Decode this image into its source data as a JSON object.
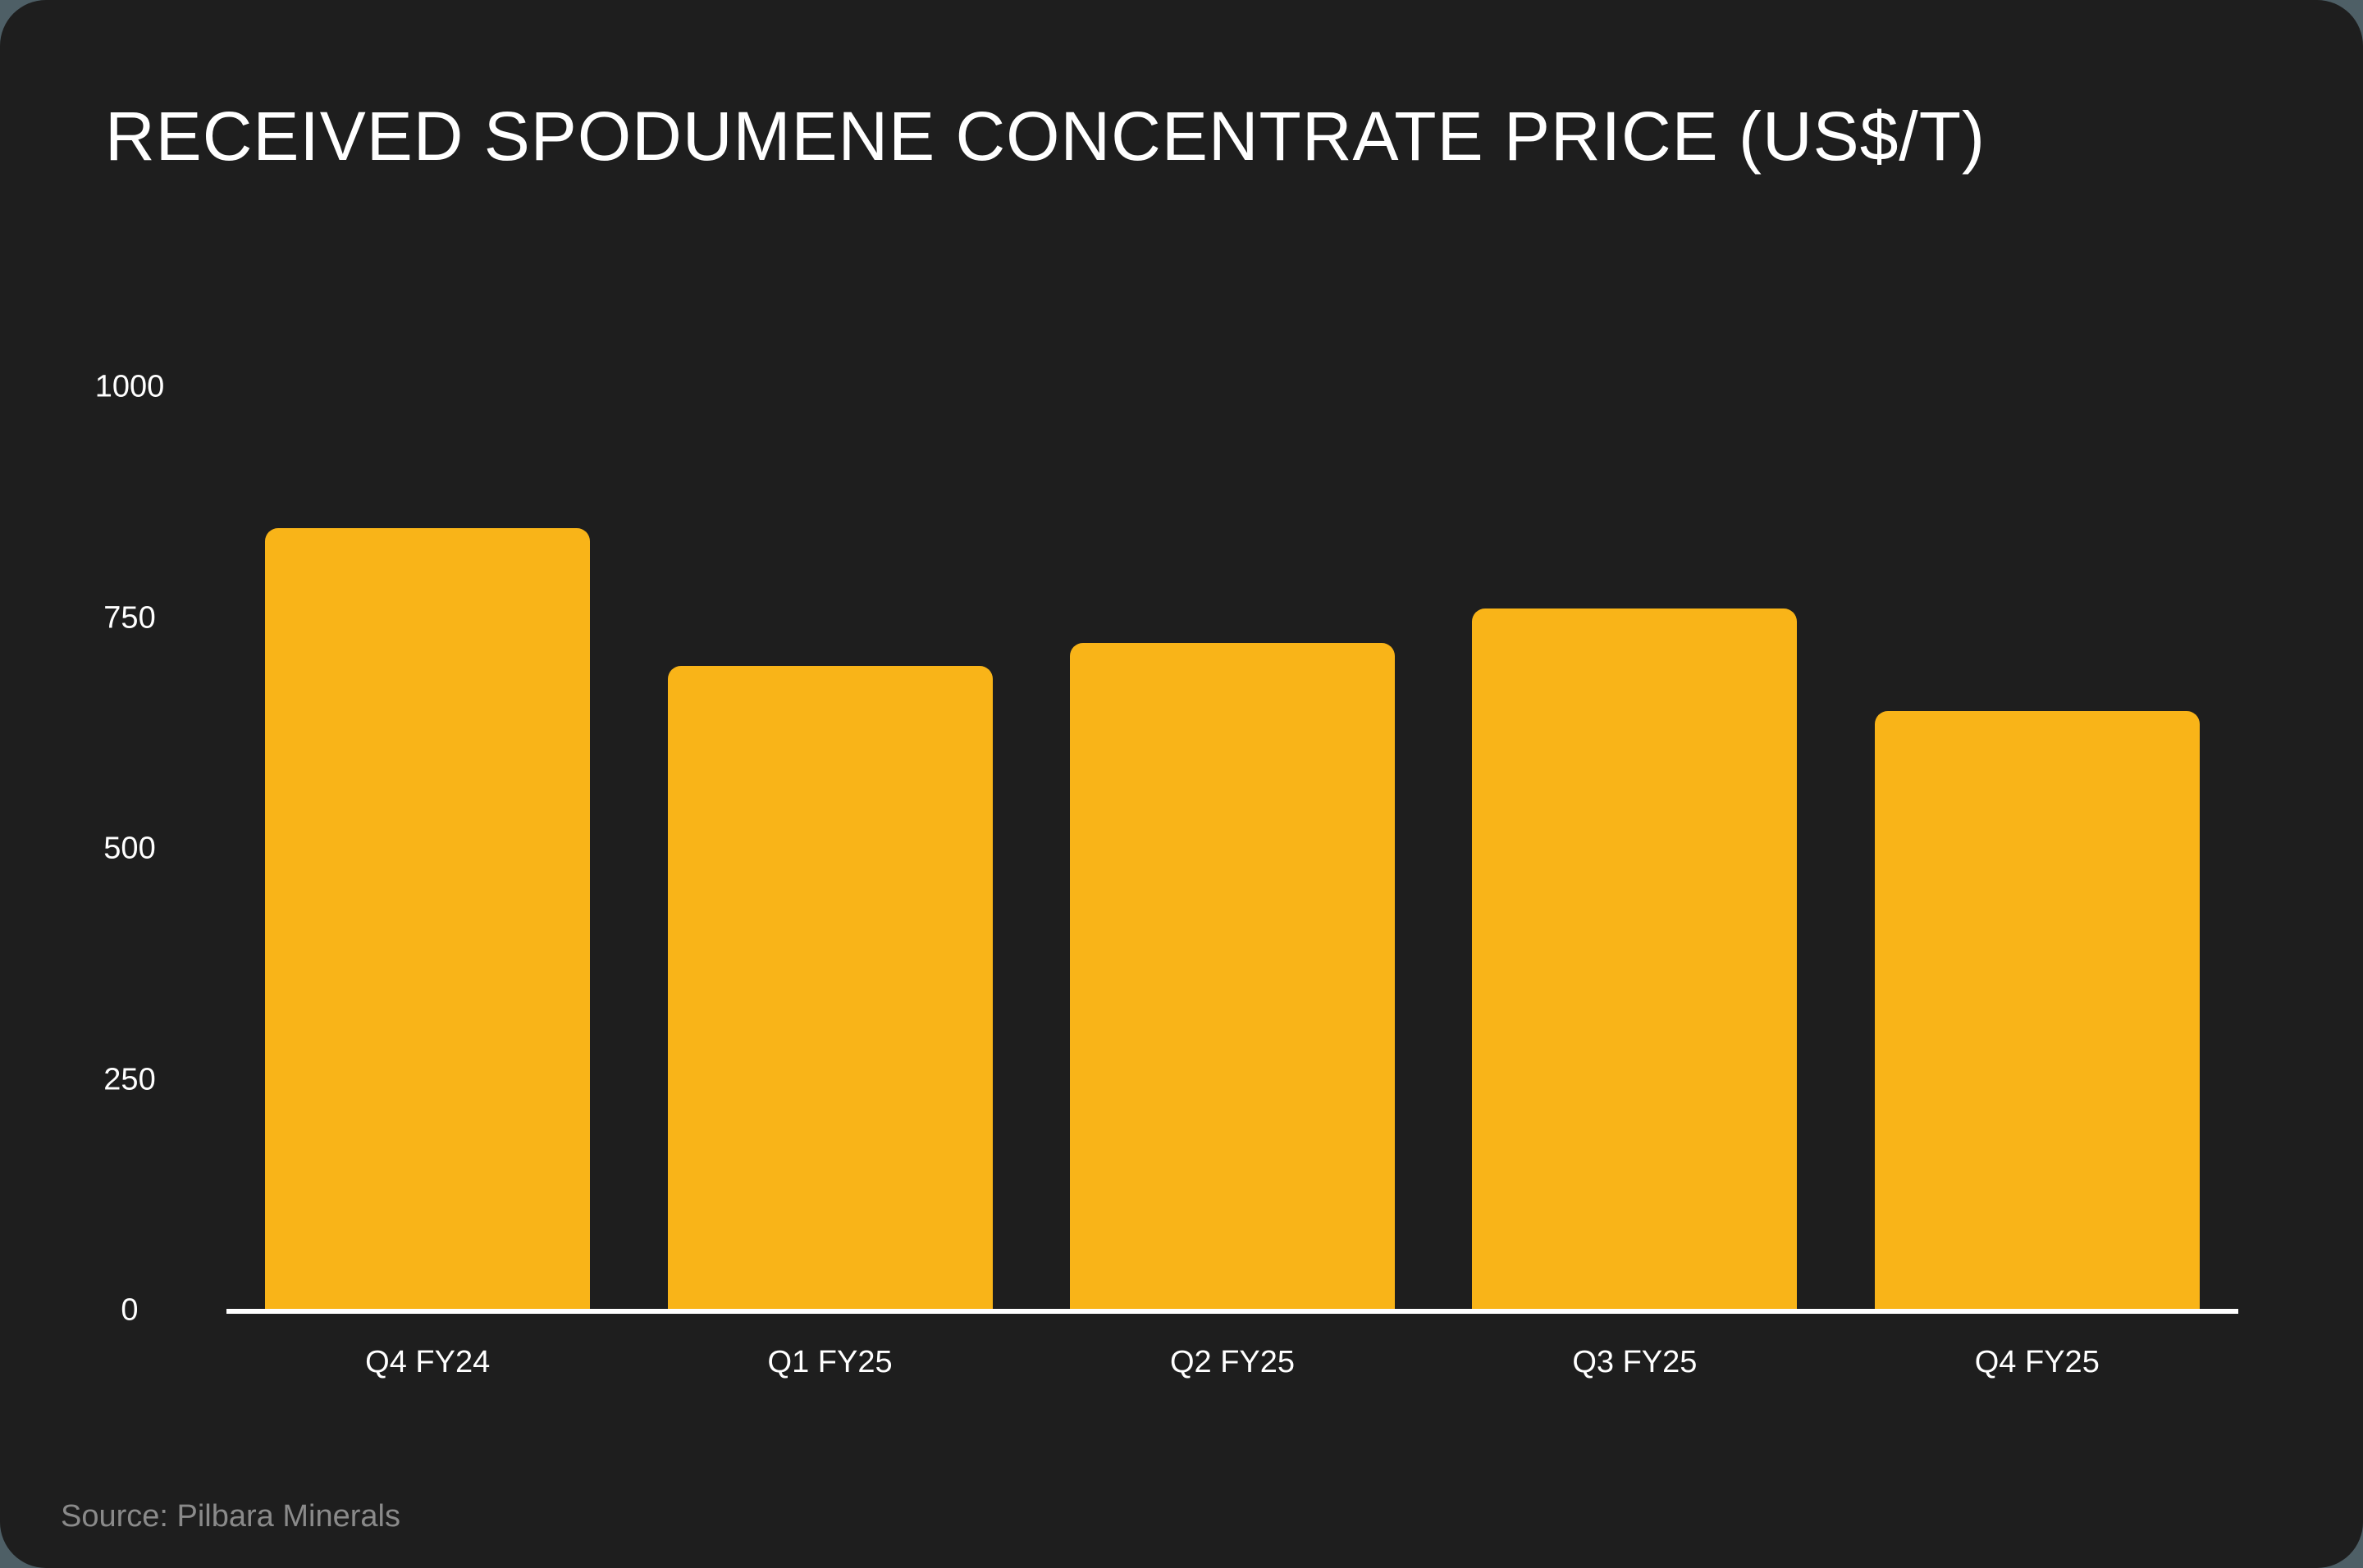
{
  "title": "RECEIVED SPODUMENE CONCENTRATE PRICE (US$/T)",
  "source": "Source: Pilbara Minerals",
  "colors": {
    "background": "#1e1e1e",
    "bar": "#f9b418",
    "axis": "#ffffff",
    "source_text": "#8a8a8a"
  },
  "y_ticks": [
    "0",
    "250",
    "500",
    "750",
    "1000"
  ],
  "chart_data": {
    "type": "bar",
    "title": "RECEIVED SPODUMENE CONCENTRATE PRICE (US$/T)",
    "xlabel": "",
    "ylabel": "",
    "categories": [
      "Q4 FY24",
      "Q1 FY25",
      "Q2 FY25",
      "Q3 FY25",
      "Q4 FY25"
    ],
    "values": [
      847,
      698,
      723,
      760,
      649
    ],
    "ylim": [
      0,
      1000
    ],
    "y_ticks": [
      0,
      250,
      500,
      750,
      1000
    ],
    "grid": false,
    "legend": null,
    "annotations": [
      "Source: Pilbara Minerals"
    ]
  }
}
